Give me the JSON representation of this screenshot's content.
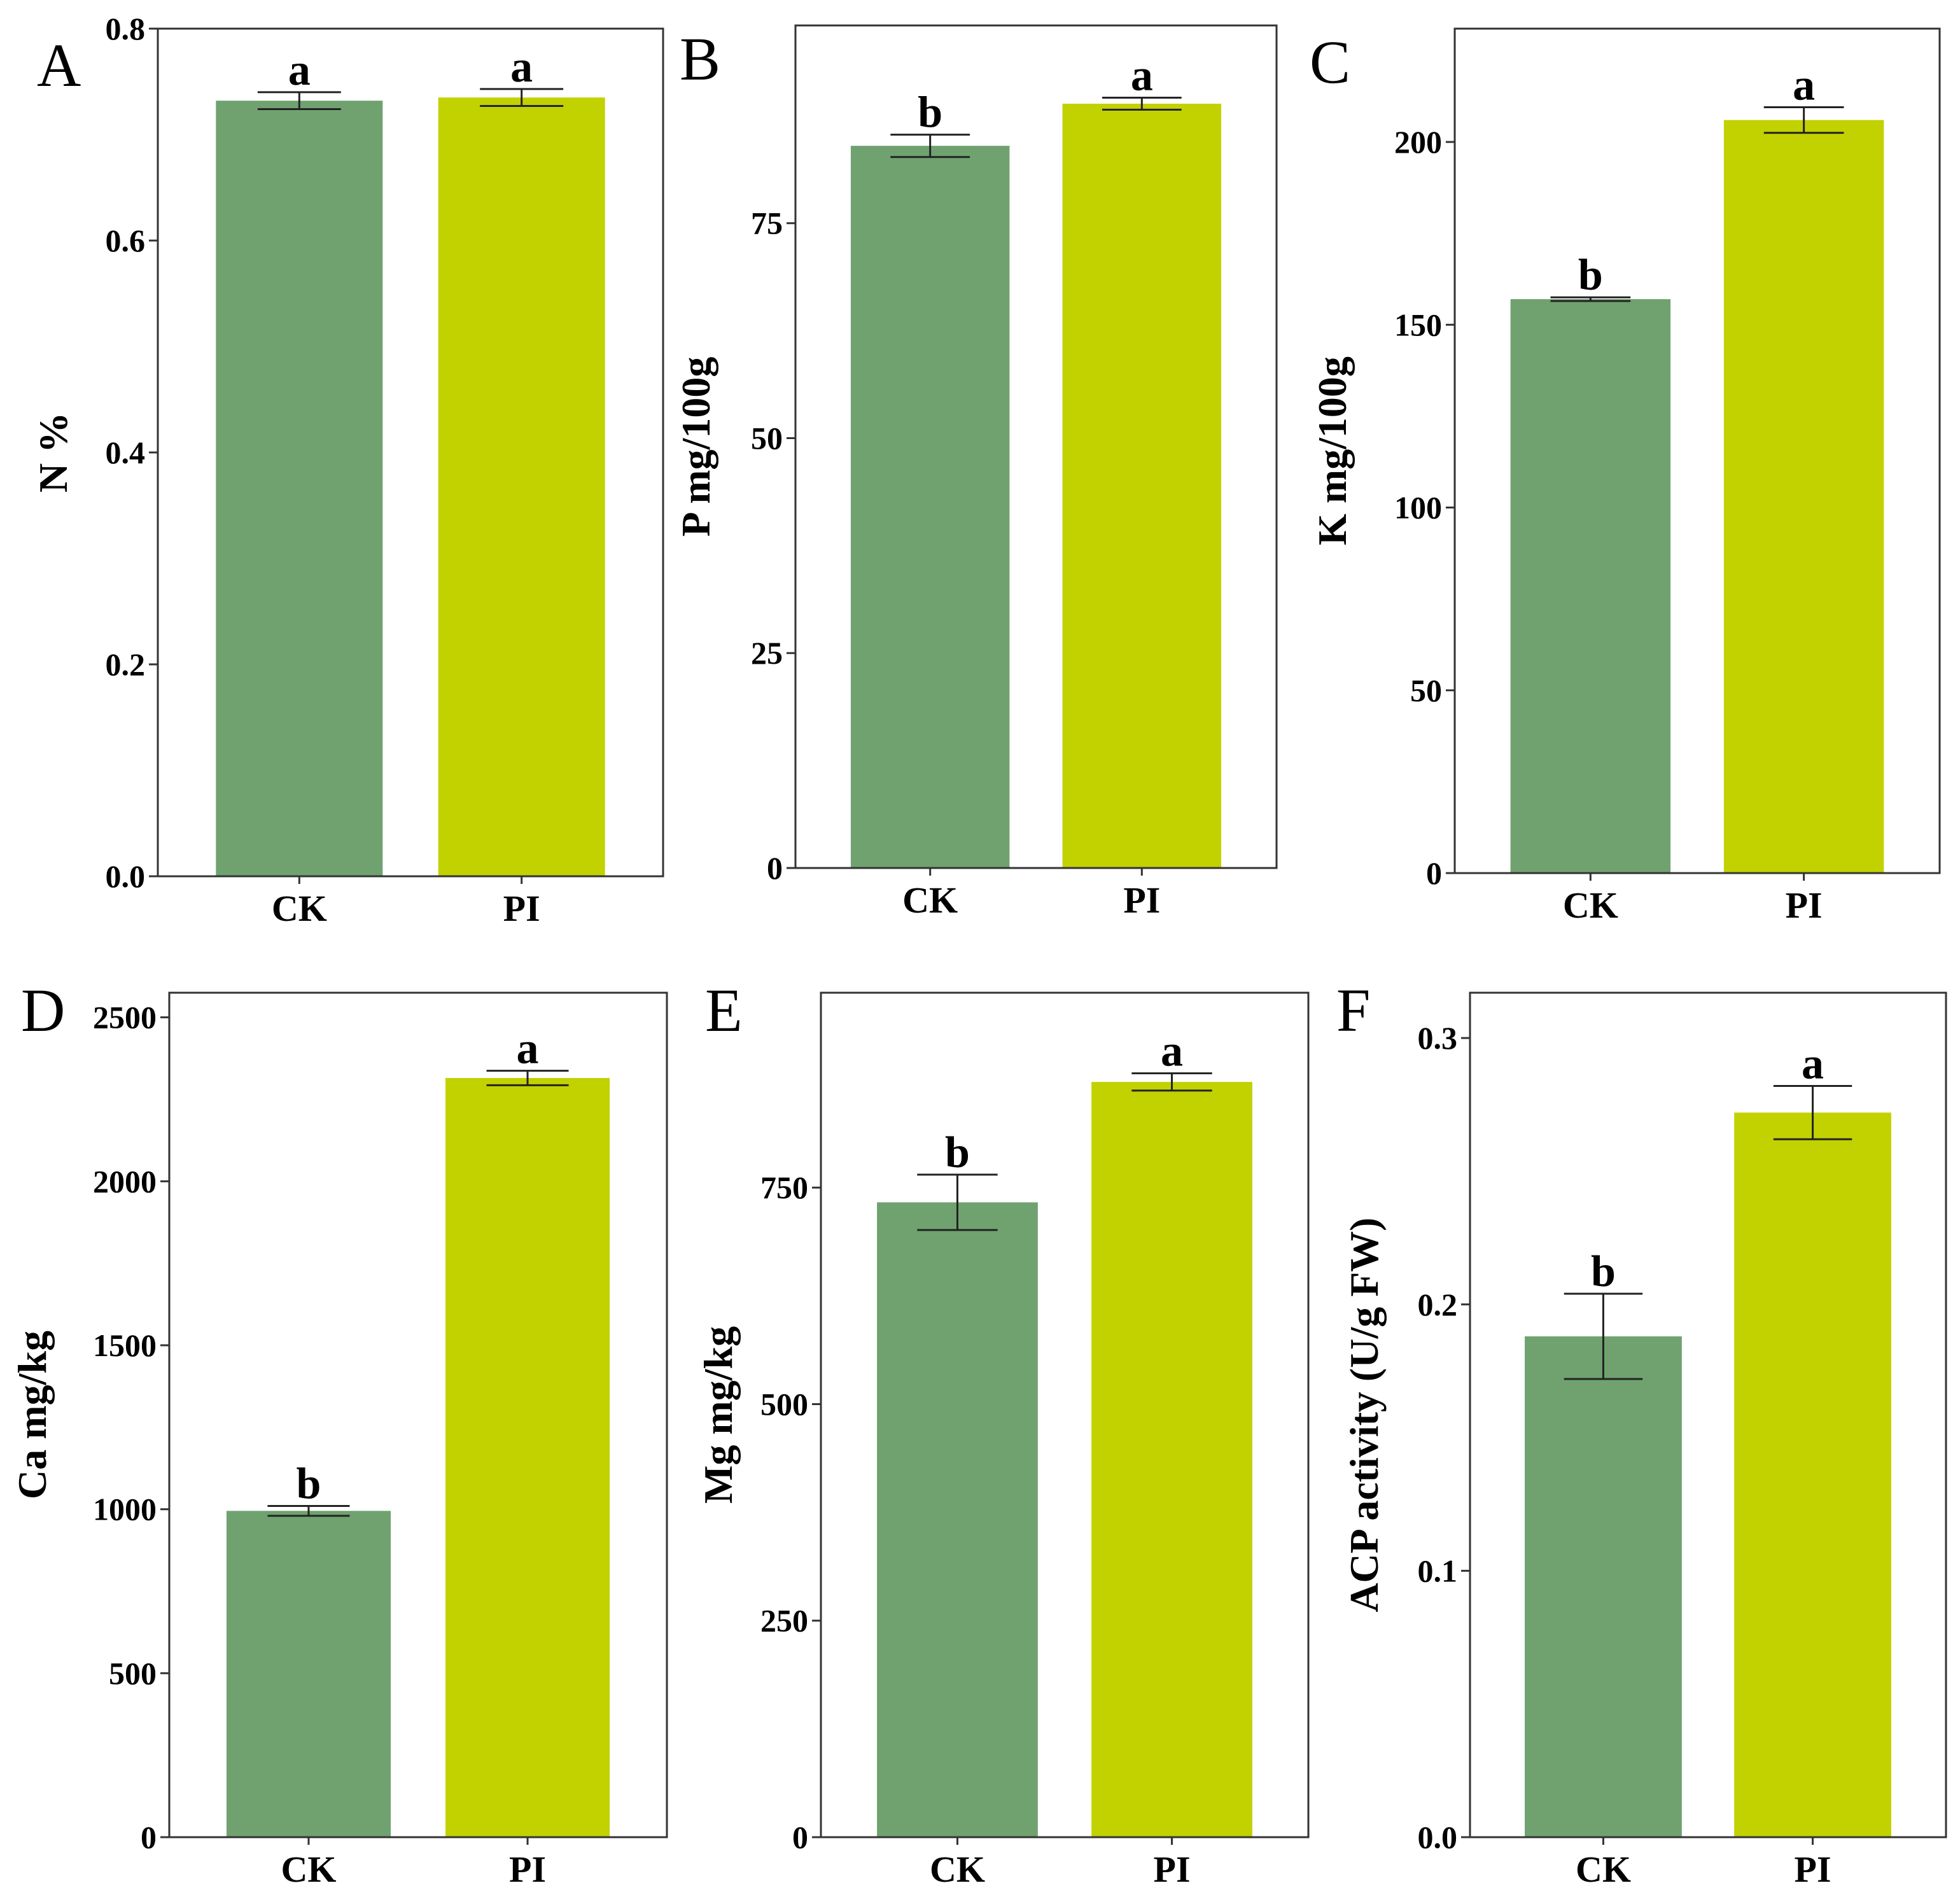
{
  "colors": {
    "CK": "#70A270",
    "PI": "#C2D100"
  },
  "chart_data": [
    {
      "type": "bar",
      "panel": "A",
      "categories": [
        "CK",
        "PI"
      ],
      "values": [
        0.732,
        0.735
      ],
      "errors": [
        0.008,
        0.008
      ],
      "significance": [
        "a",
        "a"
      ],
      "ylabel": "N %",
      "ylim": [
        0,
        0.8
      ],
      "yticks": [
        0.0,
        0.2,
        0.4,
        0.6,
        0.8
      ],
      "ytick_labels": [
        "0.0",
        "0.2",
        "0.4",
        "0.6",
        "0.8"
      ]
    },
    {
      "type": "bar",
      "panel": "B",
      "categories": [
        "CK",
        "PI"
      ],
      "values": [
        84.0,
        88.9
      ],
      "errors": [
        1.3,
        0.7
      ],
      "significance": [
        "b",
        "a"
      ],
      "ylabel": "P mg/100g",
      "ylim": [
        0,
        98
      ],
      "yticks": [
        0,
        25,
        50,
        75
      ],
      "ytick_labels": [
        "0",
        "25",
        "50",
        "75"
      ]
    },
    {
      "type": "bar",
      "panel": "C",
      "categories": [
        "CK",
        "PI"
      ],
      "values": [
        157,
        206
      ],
      "errors": [
        0.5,
        3.5
      ],
      "significance": [
        "b",
        "a"
      ],
      "ylabel": "K mg/100g",
      "ylim": [
        0,
        231
      ],
      "yticks": [
        0,
        50,
        100,
        150,
        200
      ],
      "ytick_labels": [
        "0",
        "50",
        "100",
        "150",
        "200"
      ]
    },
    {
      "type": "bar",
      "panel": "D",
      "categories": [
        "CK",
        "PI"
      ],
      "values": [
        995,
        2315
      ],
      "errors": [
        15,
        22
      ],
      "significance": [
        "b",
        "a"
      ],
      "ylabel": "Ca mg/kg",
      "ylim": [
        0,
        2575
      ],
      "yticks": [
        0,
        500,
        1000,
        1500,
        2000,
        2500
      ],
      "ytick_labels": [
        "0",
        "500",
        "1000",
        "1500",
        "2000",
        "2500"
      ]
    },
    {
      "type": "bar",
      "panel": "E",
      "categories": [
        "CK",
        "PI"
      ],
      "values": [
        733,
        872
      ],
      "errors": [
        32,
        10
      ],
      "significance": [
        "b",
        "a"
      ],
      "ylabel": "Mg mg/kg",
      "ylim": [
        0,
        975
      ],
      "yticks": [
        0,
        250,
        500,
        750
      ],
      "ytick_labels": [
        "0",
        "250",
        "500",
        "750"
      ]
    },
    {
      "type": "bar",
      "panel": "F",
      "categories": [
        "CK",
        "PI"
      ],
      "values": [
        0.188,
        0.272
      ],
      "errors": [
        0.016,
        0.01
      ],
      "significance": [
        "b",
        "a"
      ],
      "ylabel": "ACP activity (U/g FW)",
      "ylim": [
        0,
        0.317
      ],
      "yticks": [
        0.0,
        0.1,
        0.2,
        0.3
      ],
      "ytick_labels": [
        "0.0",
        "0.1",
        "0.2",
        "0.3"
      ]
    }
  ]
}
